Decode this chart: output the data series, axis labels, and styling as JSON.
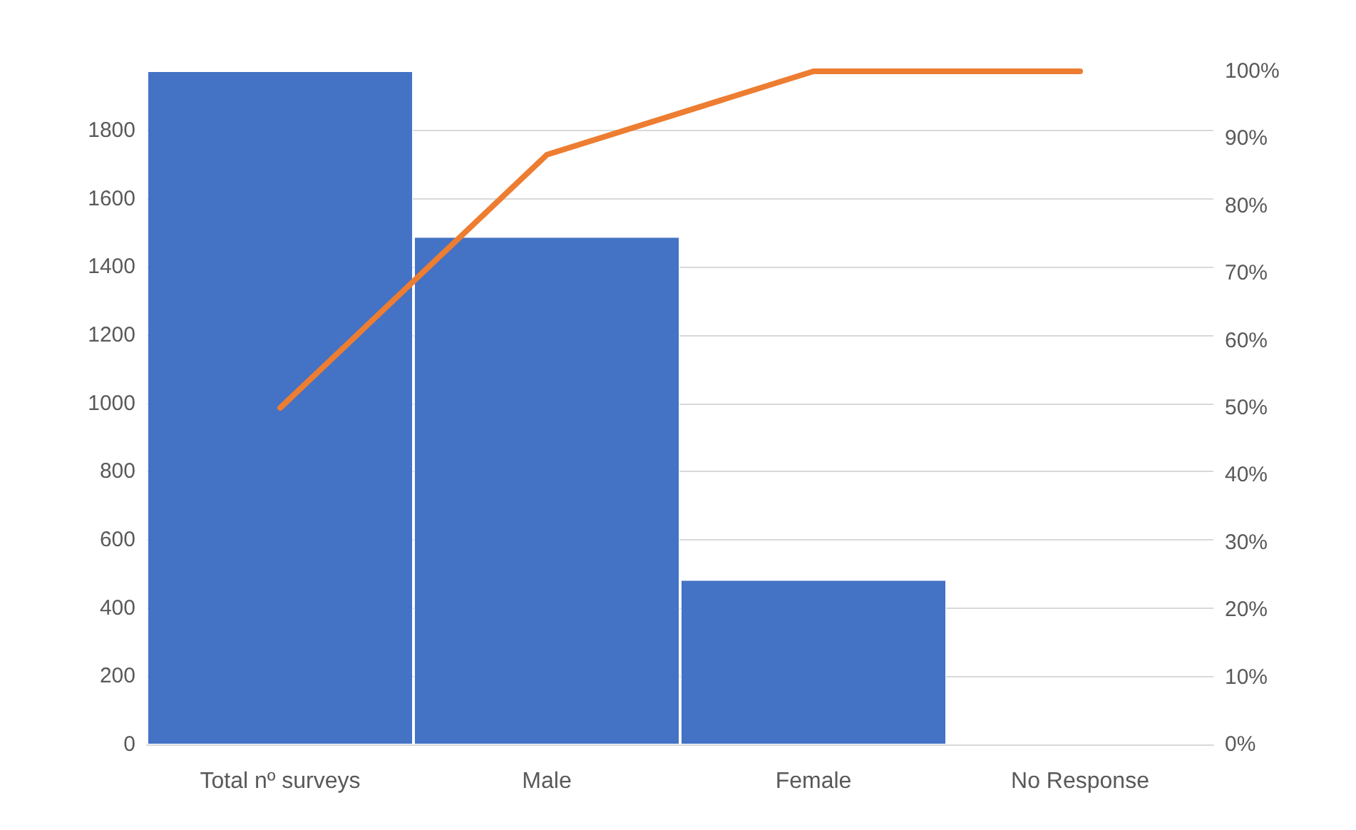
{
  "chart_data": {
    "type": "bar",
    "categories": [
      "Total nº surveys",
      "Male",
      "Female",
      "No Response"
    ],
    "series": [
      {
        "color": "#4472c4",
        "values": [
          1974,
          1488,
          482,
          null
        ]
      },
      {
        "type": "line",
        "axis": "y2",
        "color": "#ed7d31",
        "values": [
          50,
          87.6,
          100,
          100
        ],
        "marker": "none"
      }
    ],
    "ylim": [
      0,
      1974
    ],
    "yticks": [
      0,
      200,
      400,
      600,
      800,
      1000,
      1200,
      1400,
      1600,
      1800
    ],
    "y2lim": [
      0,
      100
    ],
    "y2ticks": [
      {
        "value": 0,
        "label": "0%"
      },
      {
        "value": 10,
        "label": "10%"
      },
      {
        "value": 20,
        "label": "20%"
      },
      {
        "value": 30,
        "label": "30%"
      },
      {
        "value": 40,
        "label": "40%"
      },
      {
        "value": 50,
        "label": "50%"
      },
      {
        "value": 60,
        "label": "60%"
      },
      {
        "value": 70,
        "label": "70%"
      },
      {
        "value": 80,
        "label": "80%"
      },
      {
        "value": 90,
        "label": "90%"
      },
      {
        "value": 100,
        "label": "100%"
      }
    ],
    "grid": "y"
  }
}
